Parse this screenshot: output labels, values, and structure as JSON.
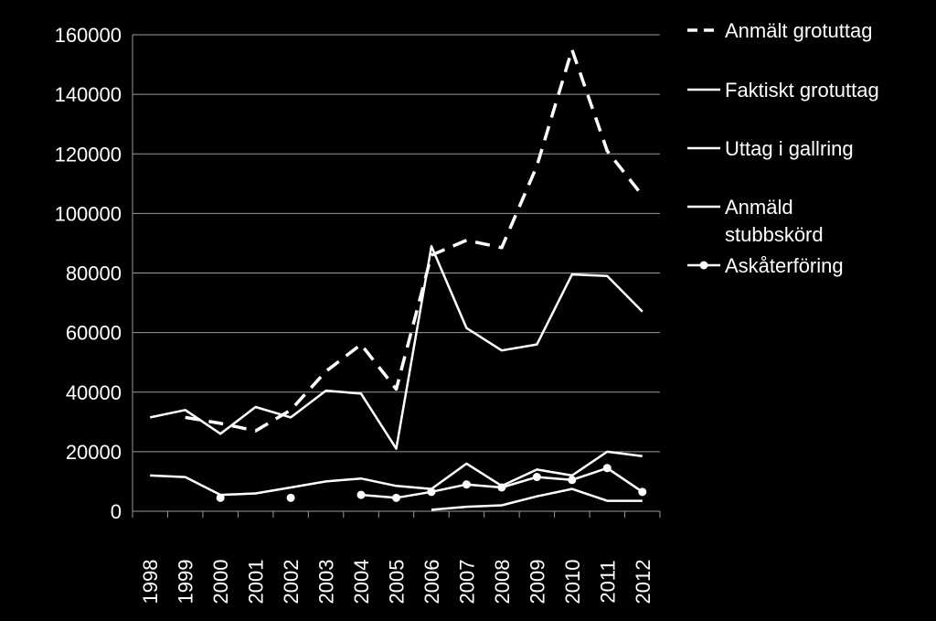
{
  "chart_data": {
    "type": "line",
    "background": "#000000",
    "foreground": "#ffffff",
    "grid": true,
    "legend_position": "right",
    "ylim": [
      0,
      160000
    ],
    "yticks": [
      "0",
      "20000",
      "40000",
      "60000",
      "80000",
      "100000",
      "120000",
      "140000",
      "160000"
    ],
    "categories": [
      "1998",
      "1999",
      "2000",
      "2001",
      "2002",
      "2003",
      "2004",
      "2005",
      "2006",
      "2007",
      "2008",
      "2009",
      "2010",
      "2011",
      "2012"
    ],
    "series": [
      {
        "name": "Anmält grotuttag",
        "style": "dashed",
        "values": [
          null,
          31500,
          29500,
          27000,
          34000,
          47000,
          56000,
          41000,
          86000,
          91000,
          88500,
          116000,
          155000,
          121000,
          106000
        ]
      },
      {
        "name": "Faktiskt grotuttag",
        "style": "solid",
        "values": [
          31500,
          34000,
          26000,
          35000,
          31500,
          40500,
          39500,
          21000,
          89000,
          61500,
          54000,
          56000,
          79500,
          79000,
          67000
        ]
      },
      {
        "name": "Uttag i gallring",
        "style": "solid",
        "values": [
          12000,
          11500,
          5500,
          6000,
          8000,
          10000,
          11000,
          8500,
          7500,
          16000,
          8500,
          14000,
          12000,
          20000,
          18500
        ]
      },
      {
        "name": "Anmäld stubbskörd",
        "style": "solid",
        "values": [
          null,
          null,
          null,
          null,
          null,
          null,
          null,
          null,
          500,
          1500,
          2000,
          5000,
          7500,
          3500,
          3500
        ]
      },
      {
        "name": "Askåterföring",
        "style": "solid-markers",
        "values": [
          null,
          null,
          4500,
          null,
          4500,
          null,
          5500,
          4500,
          6500,
          9000,
          8000,
          11500,
          10500,
          14500,
          6500
        ]
      }
    ]
  }
}
